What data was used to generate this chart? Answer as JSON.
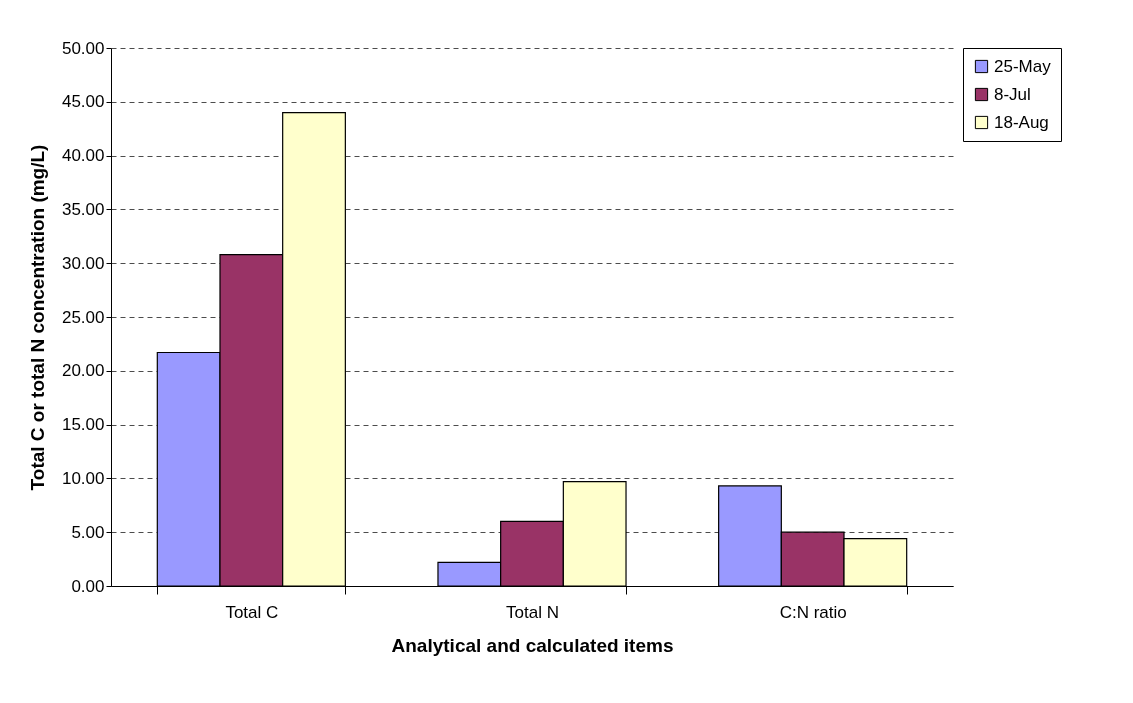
{
  "chart_data": {
    "type": "bar",
    "xlabel": "Analytical and calculated items",
    "ylabel": "Total C or total N concentration (mg/L)",
    "categories": [
      "Total C",
      "Total N",
      "C:N ratio"
    ],
    "series": [
      {
        "name": "25-May",
        "color": "#9999ff",
        "values": [
          21.7,
          2.2,
          9.3
        ]
      },
      {
        "name": "8-Jul",
        "color": "#993366",
        "values": [
          30.8,
          6.0,
          5.0
        ]
      },
      {
        "name": "18-Aug",
        "color": "#ffffcc",
        "values": [
          44.0,
          9.7,
          4.4
        ]
      }
    ],
    "ylim": [
      0,
      50
    ],
    "yticks": [
      {
        "value": 0,
        "label": "0.00"
      },
      {
        "value": 5,
        "label": "5.00"
      },
      {
        "value": 10,
        "label": "10.00"
      },
      {
        "value": 15,
        "label": "15.00"
      },
      {
        "value": 20,
        "label": "20.00"
      },
      {
        "value": 25,
        "label": "25.00"
      },
      {
        "value": 30,
        "label": "30.00"
      },
      {
        "value": 35,
        "label": "35.00"
      },
      {
        "value": 40,
        "label": "40.00"
      },
      {
        "value": 45,
        "label": "45.00"
      },
      {
        "value": 50,
        "label": "50.00"
      }
    ],
    "grid": "y",
    "line_style": "dashed",
    "legend": "right"
  }
}
